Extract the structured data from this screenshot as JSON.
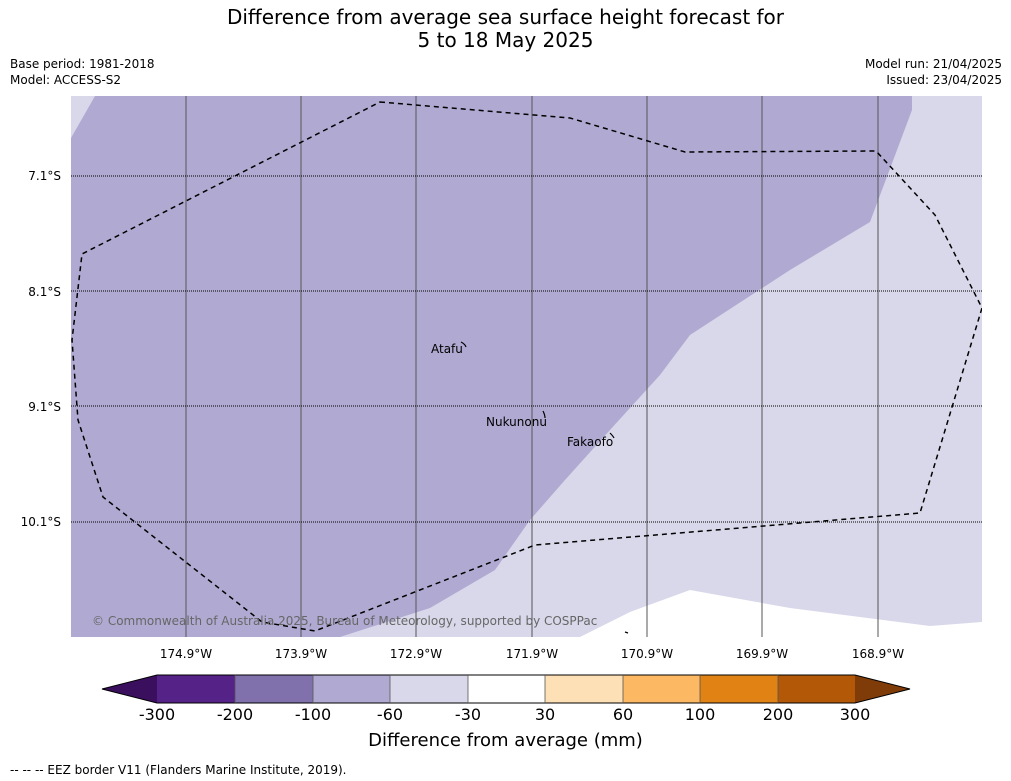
{
  "title": {
    "line1": "Difference from average sea surface height forecast for",
    "line2": "5 to 18 May 2025"
  },
  "meta": {
    "base_period": "Base period: 1981-2018",
    "model": "Model: ACCESS-S2",
    "model_run": "Model run: 21/04/2025",
    "issued": "Issued: 23/04/2025"
  },
  "map": {
    "latitudes": [
      "7.1°S",
      "8.1°S",
      "9.1°S",
      "10.1°S"
    ],
    "longitudes": [
      "174.9°W",
      "173.9°W",
      "172.9°W",
      "171.9°W",
      "170.9°W",
      "169.9°W",
      "168.9°W"
    ],
    "places": [
      "Atafu",
      "Nukunonu",
      "Fakaofo"
    ],
    "copyright": "© Commonwealth of Australia 2025, Bureau of Meteorology, supported by COSPPac",
    "colors": {
      "band_minus100_minus60": "#b0aad2",
      "band_minus60_minus30": "#d8d8ea",
      "no_data": "#ffffff"
    }
  },
  "colorbar": {
    "labels": [
      "-300",
      "-200",
      "-100",
      "-60",
      "-30",
      "30",
      "60",
      "100",
      "200",
      "300"
    ],
    "colors": [
      "#3a0f5e",
      "#552288",
      "#8071ad",
      "#b0aad2",
      "#d8d8ea",
      "#ffffff",
      "#fee0b6",
      "#fdb863",
      "#e08214",
      "#b35806",
      "#7f3b08"
    ],
    "title": "Difference from average (mm)"
  },
  "legend_note": "-- -- -- EEZ border V11 (Flanders Marine Institute, 2019)."
}
